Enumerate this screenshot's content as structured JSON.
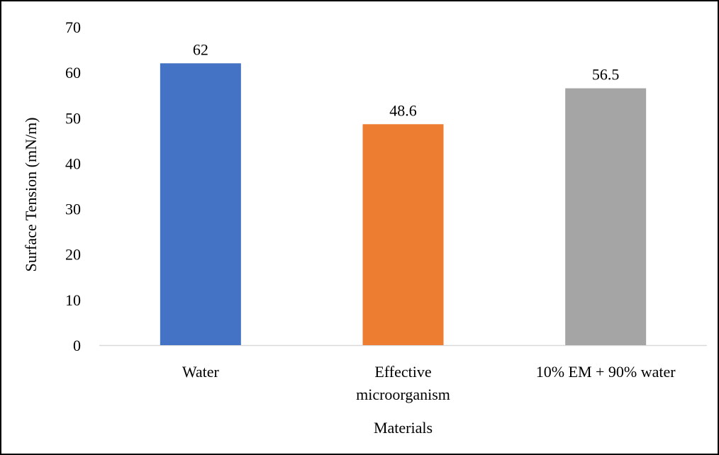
{
  "chart_data": {
    "type": "bar",
    "title": "",
    "xlabel": "Materials",
    "ylabel": "Surface Tension (mN/m)",
    "ylim": [
      0,
      70
    ],
    "yticks": [
      0,
      10,
      20,
      30,
      40,
      50,
      60,
      70
    ],
    "grid": false,
    "legend": "none",
    "categories": [
      [
        "Water"
      ],
      [
        "Effective",
        "microorganism"
      ],
      [
        "10% EM + 90% water"
      ]
    ],
    "values": [
      62,
      48.6,
      56.5
    ],
    "data_labels": [
      "62",
      "48.6",
      "56.5"
    ],
    "colors": [
      "#4472C4",
      "#ED7D31",
      "#A5A5A5"
    ],
    "axis_color": "#D9D9D9"
  }
}
